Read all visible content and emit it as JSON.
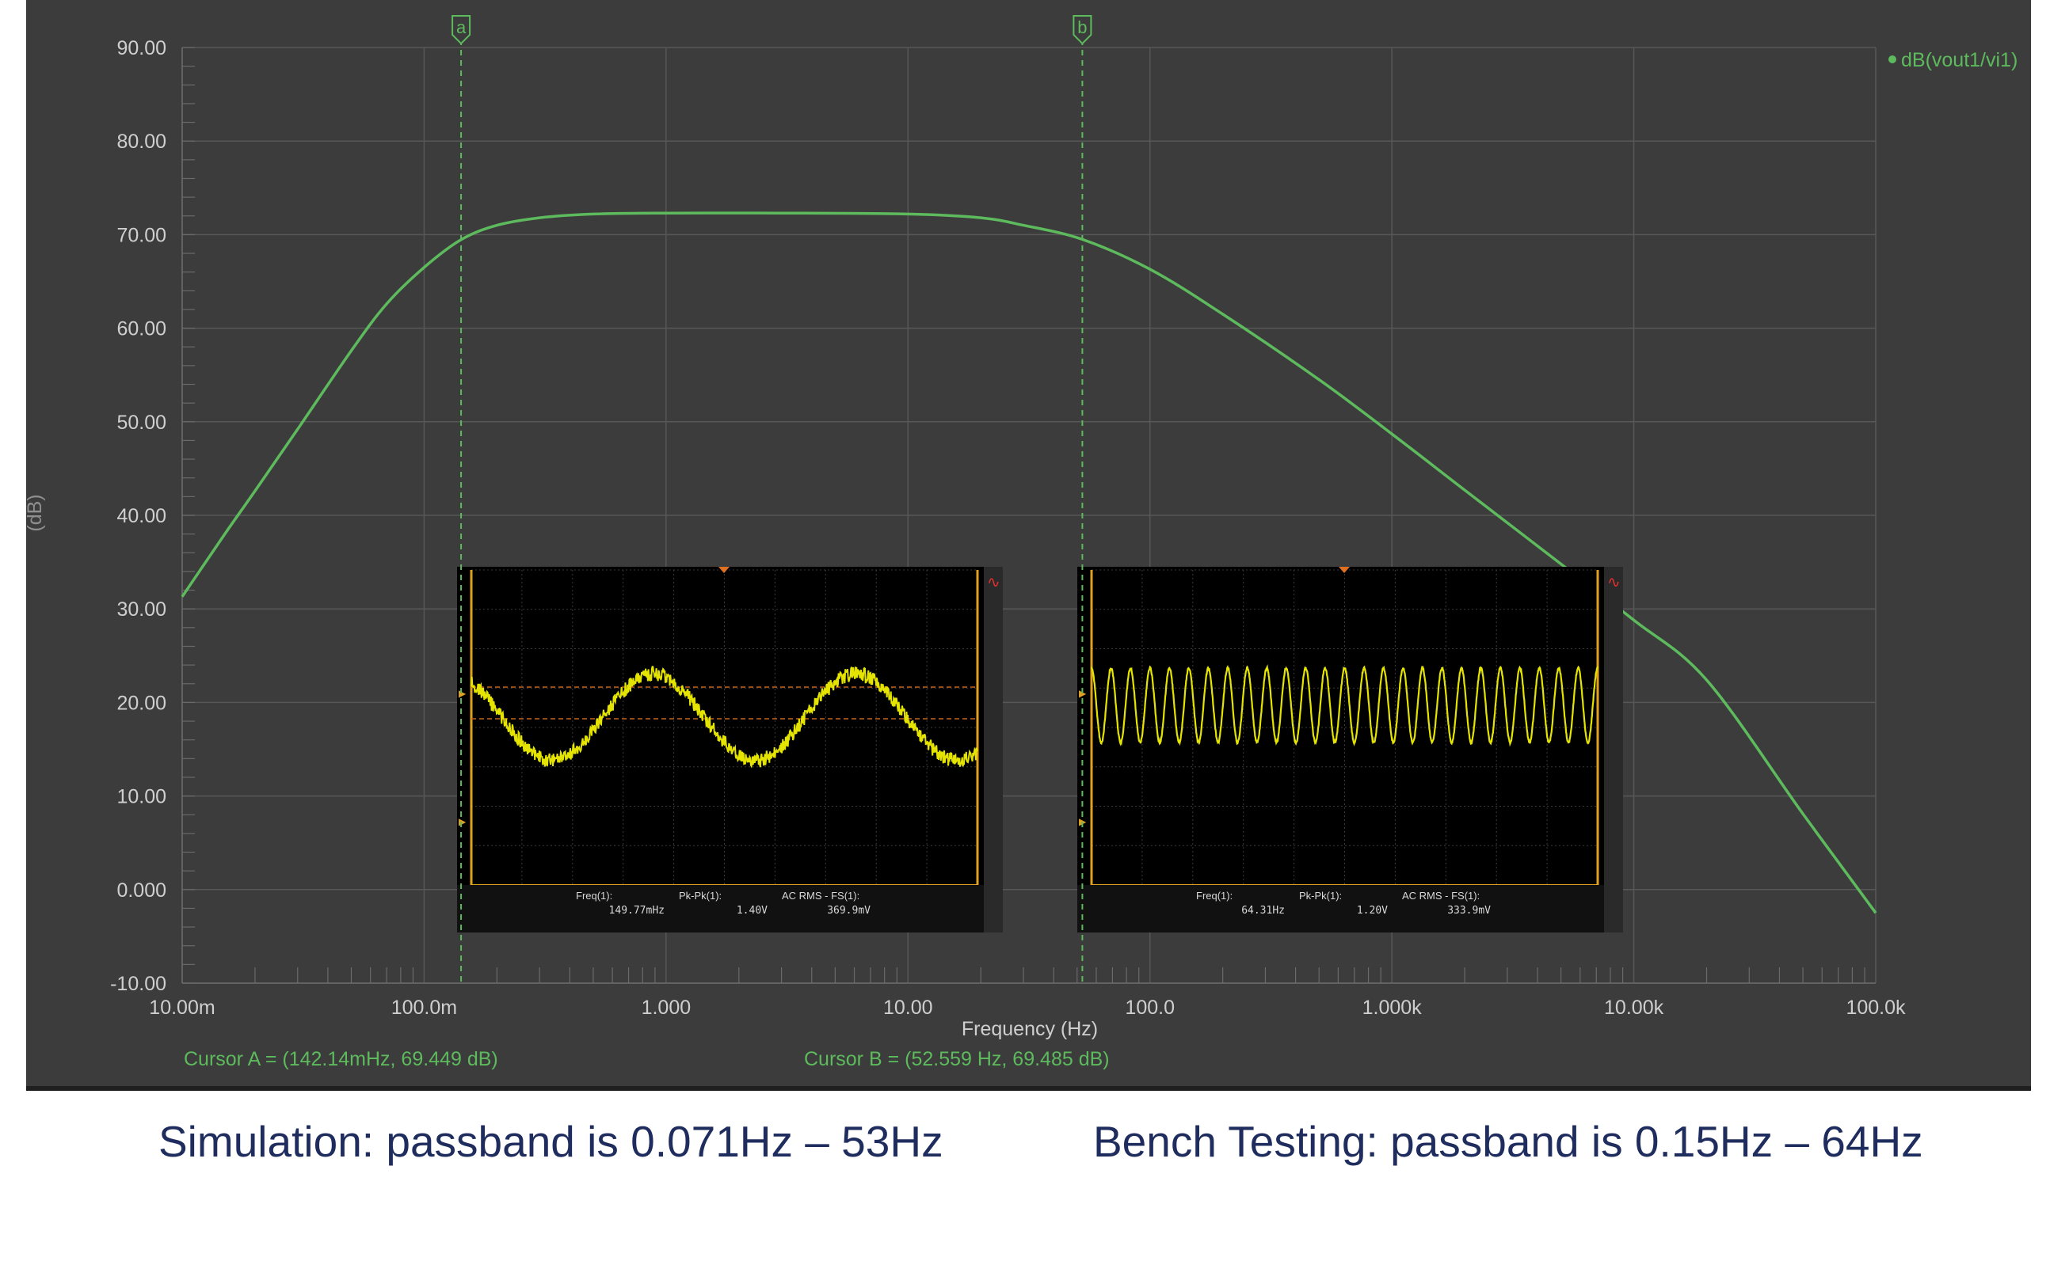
{
  "chart_data": {
    "type": "line",
    "xlabel": "Frequency (Hz)",
    "ylabel": "(dB)",
    "x_scale": "log",
    "xlim": [
      0.01,
      100000
    ],
    "ylim": [
      -10,
      90
    ],
    "grid": true,
    "legend_position": "top-right",
    "x_ticks": [
      {
        "value": 0.01,
        "label": "10.00m"
      },
      {
        "value": 0.1,
        "label": "100.0m"
      },
      {
        "value": 1,
        "label": "1.000"
      },
      {
        "value": 10,
        "label": "10.00"
      },
      {
        "value": 100,
        "label": "100.0"
      },
      {
        "value": 1000,
        "label": "1.000k"
      },
      {
        "value": 10000,
        "label": "10.00k"
      },
      {
        "value": 100000,
        "label": "100.0k"
      }
    ],
    "y_ticks": [
      {
        "value": 90,
        "label": "90.00"
      },
      {
        "value": 80,
        "label": "80.00"
      },
      {
        "value": 70,
        "label": "70.00"
      },
      {
        "value": 60,
        "label": "60.00"
      },
      {
        "value": 50,
        "label": "50.00"
      },
      {
        "value": 40,
        "label": "40.00"
      },
      {
        "value": 30,
        "label": "30.00"
      },
      {
        "value": 20,
        "label": "20.00"
      },
      {
        "value": 10,
        "label": "10.00"
      },
      {
        "value": 0,
        "label": "0.000"
      },
      {
        "value": -10,
        "label": "-10.00"
      }
    ],
    "series": [
      {
        "name": "dB(vout1/vi1)",
        "color": "#5dba5d",
        "x": [
          0.01,
          0.015,
          0.02,
          0.03,
          0.05,
          0.07,
          0.1,
          0.142,
          0.2,
          0.3,
          0.5,
          1,
          3,
          10,
          20,
          30,
          52.56,
          100,
          200,
          500,
          1000,
          2000,
          5000,
          10000,
          20000,
          50000,
          100000
        ],
        "y": [
          31.3,
          38.0,
          42.6,
          49.2,
          57.6,
          62.6,
          66.5,
          69.45,
          71.0,
          71.8,
          72.2,
          72.3,
          72.3,
          72.2,
          71.8,
          71.0,
          69.49,
          66.3,
          61.5,
          54.5,
          48.7,
          42.7,
          34.8,
          28.8,
          22.4,
          8.1,
          -2.5
        ]
      }
    ],
    "cursors": [
      {
        "marker": "a",
        "x": 0.14214,
        "readout": "Cursor A = (142.14mHz, 69.449 dB)"
      },
      {
        "marker": "b",
        "x": 52.559,
        "readout": "Cursor B = (52.559 Hz, 69.485 dB)"
      }
    ]
  },
  "scope_insets": [
    {
      "measurements": [
        {
          "label": "Freq(1):",
          "value": "149.77mHz"
        },
        {
          "label": "Pk-Pk(1):",
          "value": "1.40V"
        },
        {
          "label": "AC RMS - FS(1):",
          "value": "369.9mV"
        }
      ],
      "trace_color": "#e4e400",
      "cycles_shown": 2.5
    },
    {
      "measurements": [
        {
          "label": "Freq(1):",
          "value": "64.31Hz"
        },
        {
          "label": "Pk-Pk(1):",
          "value": "1.20V"
        },
        {
          "label": "AC RMS - FS(1):",
          "value": "333.9mV"
        }
      ],
      "trace_color": "#e4e400",
      "cycles_shown": 26
    }
  ],
  "captions": {
    "simulation": "Simulation: passband is 0.071Hz – 53Hz",
    "bench": "Bench Testing: passband is 0.15Hz – 64Hz"
  }
}
